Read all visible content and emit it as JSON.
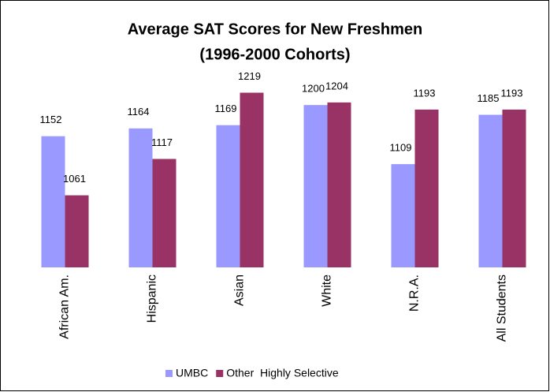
{
  "chart_data": {
    "type": "bar",
    "title": [
      "Average SAT Scores for New Freshmen",
      "(1996-2000 Cohorts)"
    ],
    "categories": [
      "African Am.",
      "Hispanic",
      "Asian",
      "White",
      "N.R.A.",
      "All Students"
    ],
    "series": [
      {
        "name": "UMBC",
        "color": "#9999ff",
        "values": [
          1152,
          1164,
          1169,
          1200,
          1109,
          1185
        ]
      },
      {
        "name": "Other  Highly Selective",
        "color": "#993366",
        "values": [
          1061,
          1117,
          1219,
          1204,
          1193,
          1193
        ]
      }
    ],
    "ylim": [
      950,
      1250
    ]
  }
}
